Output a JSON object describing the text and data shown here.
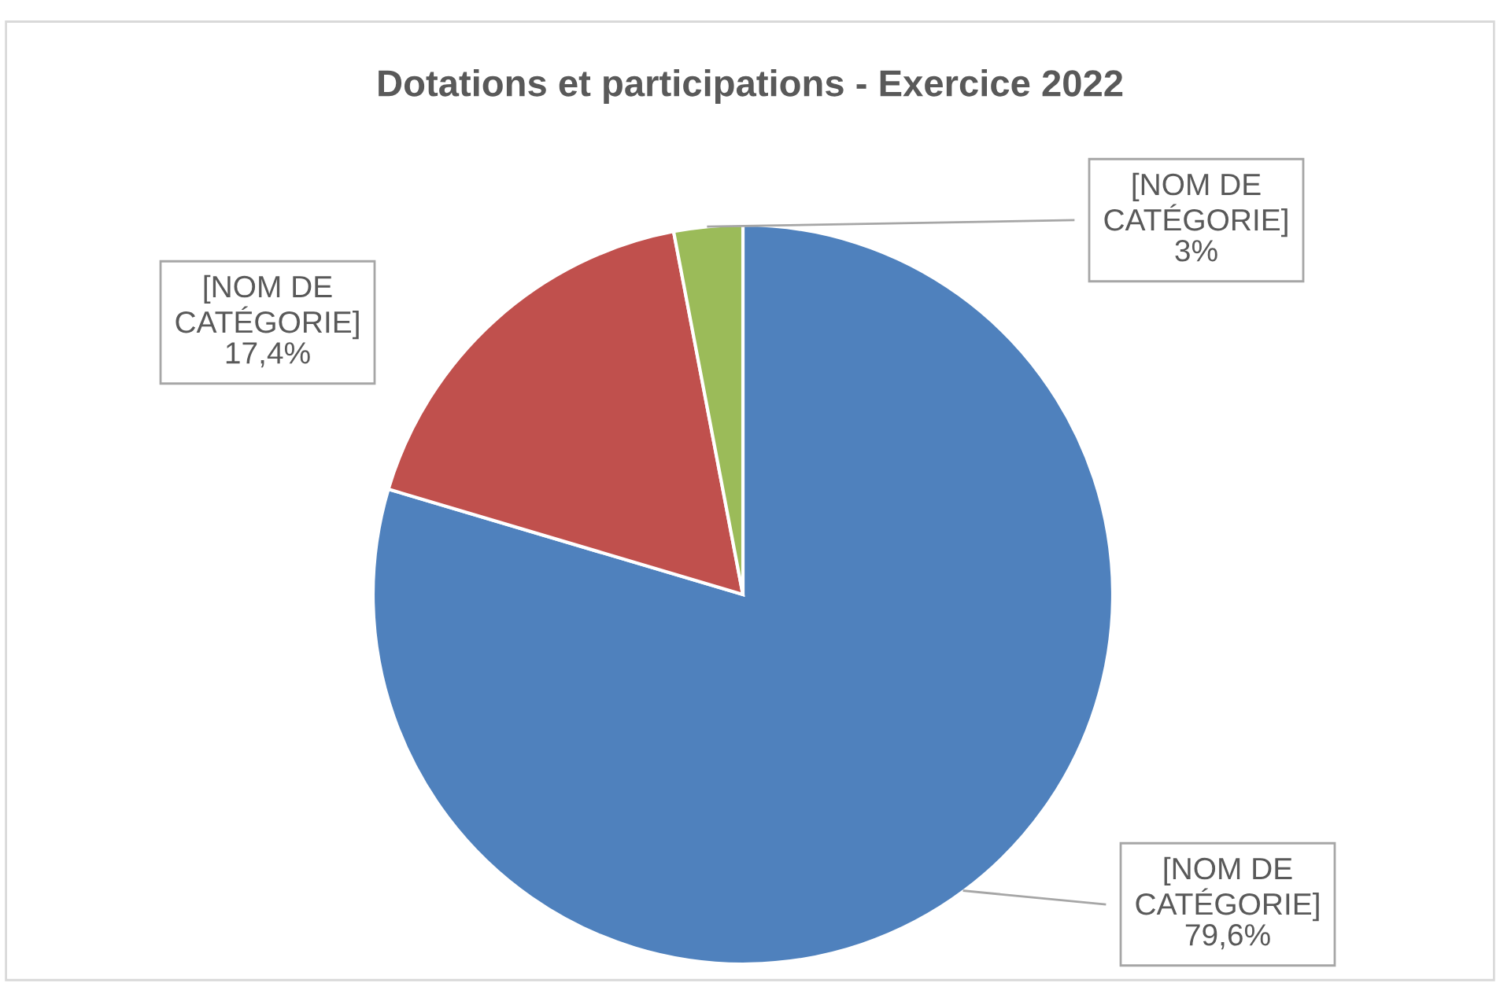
{
  "chart_data": {
    "type": "pie",
    "title": "Dotations et participations - Exercice 2022",
    "categories": [
      "[NOM DE CATÉGORIE]",
      "[NOM DE CATÉGORIE]",
      "[NOM DE CATÉGORIE]"
    ],
    "values": [
      79.6,
      17.4,
      3
    ],
    "value_labels": [
      "79,6%",
      "17,4%",
      "3%"
    ],
    "colors": [
      "#4f81bd",
      "#c0504d",
      "#9bbb59"
    ]
  }
}
